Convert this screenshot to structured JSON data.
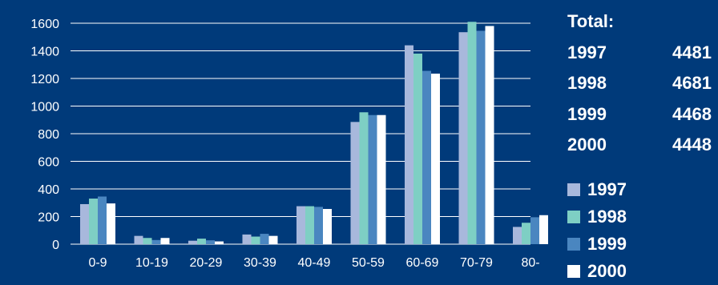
{
  "chart_data": {
    "type": "bar",
    "categories": [
      "0-9",
      "10-19",
      "20-29",
      "30-39",
      "40-49",
      "50-59",
      "60-69",
      "70-79",
      "80-"
    ],
    "series": [
      {
        "name": "1997",
        "color": "#a8b8dc",
        "values": [
          290,
          60,
          25,
          70,
          275,
          885,
          1440,
          1535,
          125
        ]
      },
      {
        "name": "1998",
        "color": "#7ecfc4",
        "values": [
          330,
          45,
          40,
          55,
          275,
          955,
          1380,
          1610,
          155
        ]
      },
      {
        "name": "1999",
        "color": "#4a86c0",
        "values": [
          345,
          30,
          28,
          75,
          270,
          935,
          1255,
          1545,
          195
        ]
      },
      {
        "name": "2000",
        "color": "#ffffff",
        "values": [
          295,
          45,
          20,
          60,
          255,
          935,
          1235,
          1580,
          210
        ]
      }
    ],
    "yticks": [
      0,
      200,
      400,
      600,
      800,
      1000,
      1200,
      1400,
      1600
    ],
    "ylim": [
      0,
      1600
    ],
    "grid": true,
    "legend_position": "right"
  },
  "totals": {
    "heading": "Total:",
    "rows": [
      {
        "year": "1997",
        "value": "4481"
      },
      {
        "year": "1998",
        "value": "4681"
      },
      {
        "year": "1999",
        "value": "4468"
      },
      {
        "year": "2000",
        "value": "4448"
      }
    ]
  },
  "legend": [
    {
      "label": "1997",
      "color": "#a8b8dc"
    },
    {
      "label": "1998",
      "color": "#7ecfc4"
    },
    {
      "label": "1999",
      "color": "#4a86c0"
    },
    {
      "label": "2000",
      "color": "#ffffff"
    }
  ]
}
